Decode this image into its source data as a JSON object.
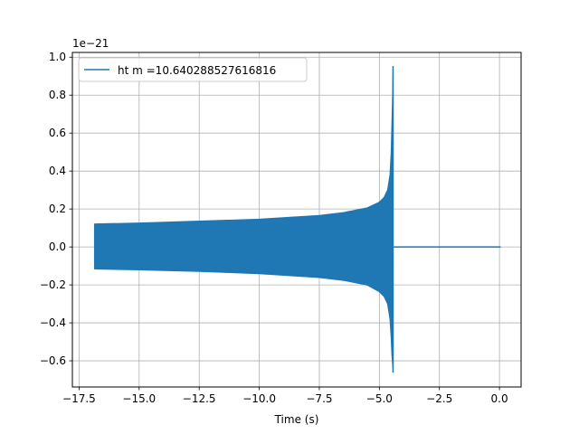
{
  "chart_data": {
    "type": "line",
    "title": "",
    "xlabel": "Time (s)",
    "ylabel": "",
    "y_offset_label": "1e−21",
    "xlim": [
      -17.78,
      0.9
    ],
    "ylim": [
      -0.738,
      1.025
    ],
    "x_ticks": [
      -17.5,
      -15.0,
      -12.5,
      -10.0,
      -7.5,
      -5.0,
      -2.5,
      0.0
    ],
    "x_tick_labels": [
      "−17.5",
      "−15.0",
      "−12.5",
      "−10.0",
      "−7.5",
      "−5.0",
      "−2.5",
      "0.0"
    ],
    "y_ticks": [
      -0.6,
      -0.4,
      -0.2,
      0.0,
      0.2,
      0.4,
      0.6,
      0.8,
      1.0
    ],
    "y_tick_labels": [
      "−0.6",
      "−0.4",
      "−0.2",
      "0.0",
      "0.2",
      "0.4",
      "0.6",
      "0.8",
      "1.0"
    ],
    "grid": true,
    "legend_position": "top-left",
    "series": [
      {
        "name": "ht m =10.640288527616816",
        "color": "#1f77b4",
        "fill_between_envelope": true,
        "upper_envelope": {
          "x": [
            -16.85,
            -15.0,
            -12.5,
            -10.0,
            -7.5,
            -6.5,
            -5.5,
            -5.0,
            -4.8,
            -4.65,
            -4.55,
            -4.5,
            -4.47,
            -4.44,
            -4.43
          ],
          "y": [
            0.12,
            0.125,
            0.135,
            0.145,
            0.165,
            0.18,
            0.205,
            0.235,
            0.26,
            0.3,
            0.38,
            0.5,
            0.65,
            0.8,
            0.95
          ]
        },
        "lower_envelope": {
          "x": [
            -16.85,
            -15.0,
            -12.5,
            -10.0,
            -7.5,
            -6.5,
            -5.5,
            -5.0,
            -4.8,
            -4.65,
            -4.55,
            -4.5,
            -4.47,
            -4.44,
            -4.43
          ],
          "y": [
            -0.115,
            -0.12,
            -0.128,
            -0.14,
            -0.16,
            -0.175,
            -0.2,
            -0.235,
            -0.26,
            -0.3,
            -0.38,
            -0.48,
            -0.57,
            -0.62,
            -0.66
          ]
        },
        "tail": {
          "x": [
            -4.4,
            0.05
          ],
          "y": [
            0.0,
            0.0
          ]
        }
      }
    ]
  }
}
